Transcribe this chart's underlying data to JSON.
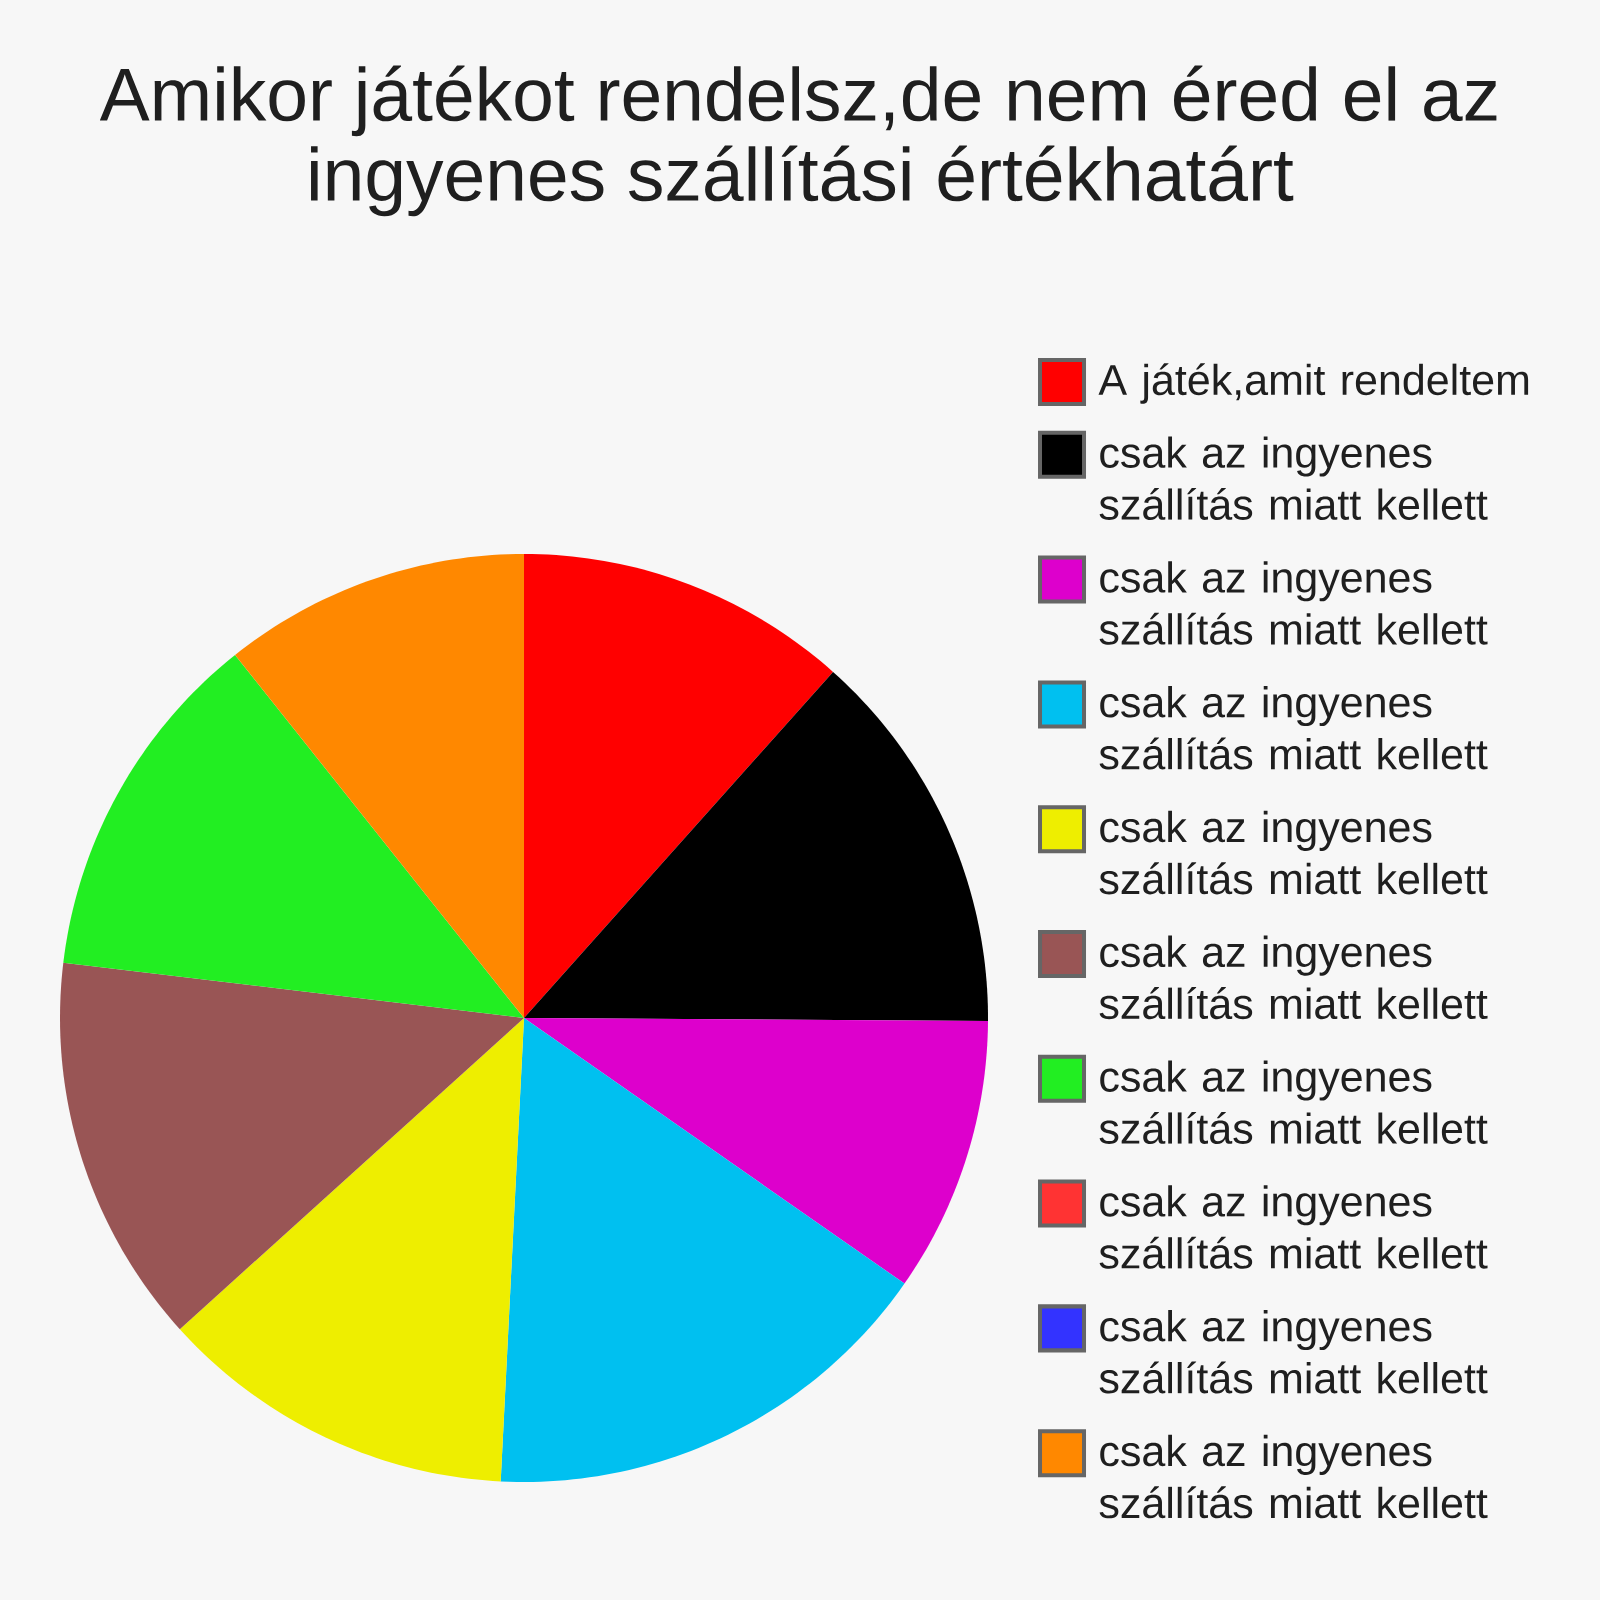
{
  "chart_data": {
    "type": "pie",
    "title": "Amikor játékot rendelsz,de nem éred el az ingyenes szállítási értékhatárt",
    "categories": [
      "A játék,amit rendeltem",
      "csak az ingyenes szállítás miatt kellett",
      "csak az ingyenes szállítás miatt kellett",
      "csak az ingyenes szállítás miatt kellett",
      "csak az ingyenes szállítás miatt kellett",
      "csak az ingyenes szállítás miatt kellett",
      "csak az ingyenes szállítás miatt kellett",
      "csak az ingyenes szállítás miatt kellett",
      "csak az ingyenes szállítás miatt kellett",
      "csak az ingyenes szállítás miatt kellett"
    ],
    "values": [
      11.6,
      13.5,
      9.6,
      16.1,
      12.5,
      13.6,
      12.4,
      0,
      0,
      10.7
    ],
    "colors": [
      "#ff0000",
      "#000000",
      "#dd00cc",
      "#00c0f0",
      "#eeee00",
      "#995555",
      "#22ee22",
      "#ff3333",
      "#3333ff",
      "#ff8800"
    ],
    "legend": "right"
  }
}
